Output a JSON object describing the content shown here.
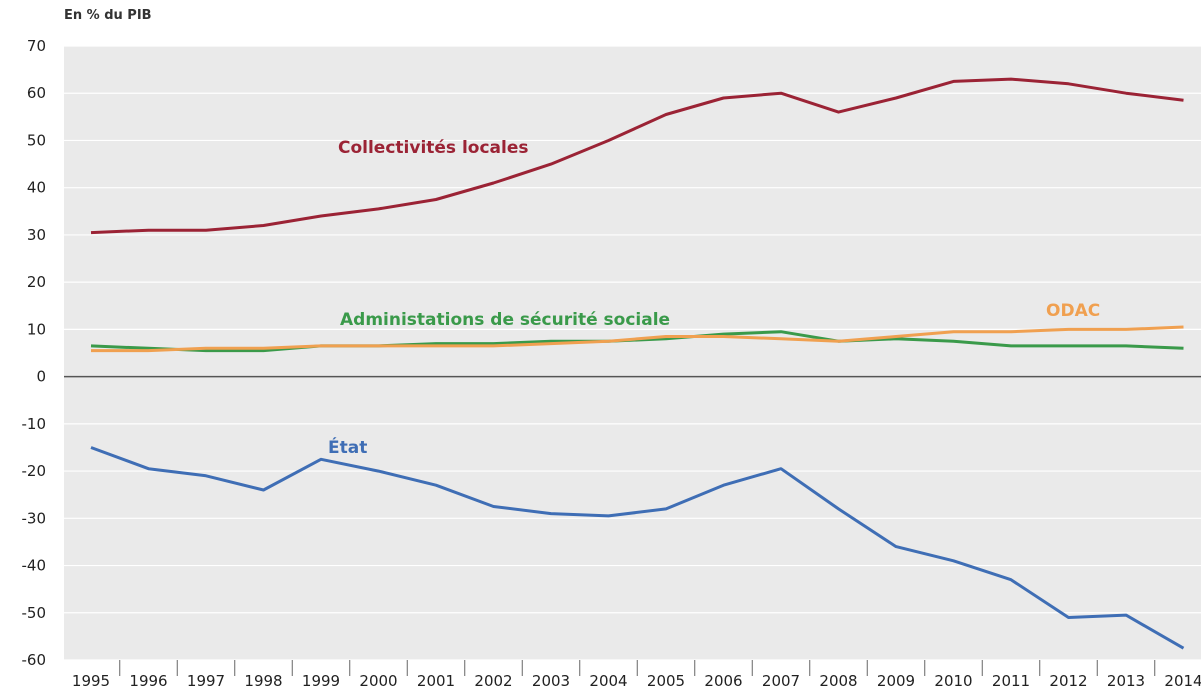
{
  "chart_data": {
    "type": "line",
    "ylabel": "En % du PIB",
    "ylim": [
      -60,
      70
    ],
    "yticks": [
      70,
      60,
      50,
      40,
      30,
      20,
      10,
      0,
      -10,
      -20,
      -30,
      -40,
      -50,
      -60
    ],
    "categories": [
      "1995",
      "1996",
      "1997",
      "1998",
      "1999",
      "2000",
      "2001",
      "2002",
      "2003",
      "2004",
      "2005",
      "2006",
      "2007",
      "2008",
      "2009",
      "2010",
      "2011",
      "2012",
      "2013",
      "2014"
    ],
    "grid": true,
    "series": [
      {
        "name": "Collectivités locales",
        "color": "#9b2335",
        "values": [
          30.5,
          31,
          31,
          32,
          34,
          35.5,
          37.5,
          41,
          45,
          50,
          55.5,
          59,
          60,
          56,
          59,
          62.5,
          63,
          62,
          60,
          58.5
        ]
      },
      {
        "name": "Administations de sécurité sociale",
        "color": "#3a9a4a",
        "values": [
          6.5,
          6,
          5.5,
          5.5,
          6.5,
          6.5,
          7,
          7,
          7.5,
          7.5,
          8,
          9,
          9.5,
          7.5,
          8,
          7.5,
          6.5,
          6.5,
          6.5,
          6
        ]
      },
      {
        "name": "ODAC",
        "color": "#f0a050",
        "values": [
          5.5,
          5.5,
          6,
          6,
          6.5,
          6.5,
          6.5,
          6.5,
          7,
          7.5,
          8.5,
          8.5,
          8,
          7.5,
          8.5,
          9.5,
          9.5,
          10,
          10,
          10.5
        ]
      },
      {
        "name": "État",
        "color": "#3f6eb5",
        "values": [
          -15,
          -19.5,
          -21,
          -24,
          -17.5,
          -20,
          -23,
          -27.5,
          -29,
          -29.5,
          -28,
          -23,
          -19.5,
          -28,
          -36,
          -39,
          -43,
          -51,
          -50.5,
          -57.5
        ]
      }
    ]
  }
}
